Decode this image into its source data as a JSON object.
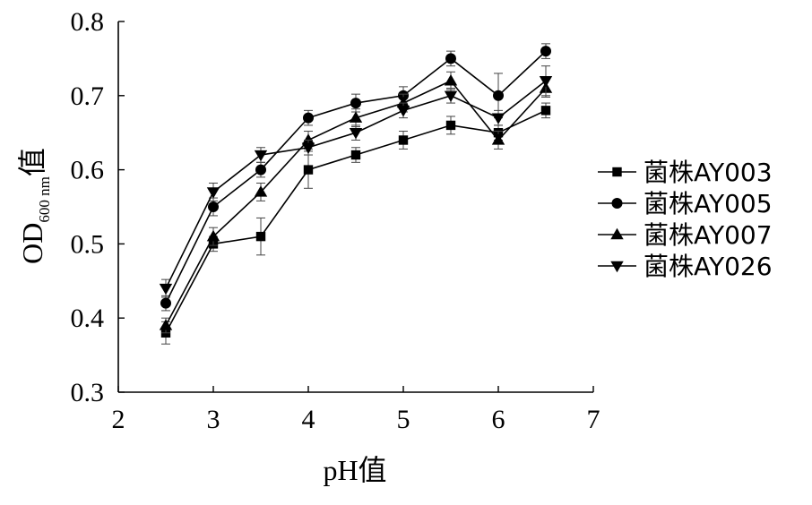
{
  "chart_data": {
    "type": "line",
    "title": "",
    "xlabel": "pH值",
    "ylabel": {
      "main": "OD",
      "subscript": "600 nm",
      "suffix": "值"
    },
    "xlim": [
      2,
      7
    ],
    "ylim": [
      0.3,
      0.8
    ],
    "x_ticks": [
      "2",
      "3",
      "4",
      "5",
      "6",
      "7"
    ],
    "y_ticks": [
      "0.3",
      "0.4",
      "0.5",
      "0.6",
      "0.7",
      "0.8"
    ],
    "legend_position": "right",
    "grid": false,
    "x": [
      2.5,
      3,
      3.5,
      4,
      4.5,
      5,
      5.5,
      6,
      6.5
    ],
    "series": [
      {
        "name": "菌株AY003",
        "marker": "square",
        "values": [
          0.38,
          0.5,
          0.51,
          0.6,
          0.62,
          0.64,
          0.66,
          0.65,
          0.68
        ],
        "errors": [
          0.015,
          0.01,
          0.025,
          0.025,
          0.01,
          0.012,
          0.012,
          0.01,
          0.01
        ]
      },
      {
        "name": "菌株AY005",
        "marker": "circle",
        "values": [
          0.42,
          0.55,
          0.6,
          0.67,
          0.69,
          0.7,
          0.75,
          0.7,
          0.76
        ],
        "errors": [
          0.01,
          0.012,
          0.01,
          0.01,
          0.012,
          0.012,
          0.01,
          0.03,
          0.01
        ]
      },
      {
        "name": "菌株AY007",
        "marker": "triangle-up",
        "values": [
          0.39,
          0.51,
          0.57,
          0.64,
          0.67,
          0.69,
          0.72,
          0.64,
          0.71
        ],
        "errors": [
          0.01,
          0.012,
          0.012,
          0.012,
          0.012,
          0.012,
          0.012,
          0.012,
          0.012
        ]
      },
      {
        "name": "菌株AY026",
        "marker": "triangle-down",
        "values": [
          0.44,
          0.57,
          0.62,
          0.63,
          0.65,
          0.68,
          0.7,
          0.67,
          0.72
        ],
        "errors": [
          0.012,
          0.012,
          0.01,
          0.01,
          0.01,
          0.01,
          0.01,
          0.01,
          0.02
        ]
      }
    ]
  }
}
